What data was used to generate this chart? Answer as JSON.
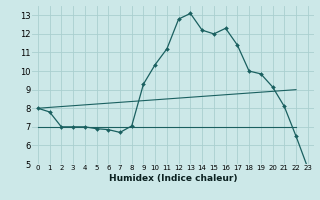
{
  "xlabel": "Humidex (Indice chaleur)",
  "bg_color": "#cce8e8",
  "grid_color": "#aacfcf",
  "line_color": "#1a6060",
  "xlim": [
    -0.5,
    23.5
  ],
  "ylim": [
    5,
    13.5
  ],
  "yticks": [
    5,
    6,
    7,
    8,
    9,
    10,
    11,
    12,
    13
  ],
  "xticks": [
    0,
    1,
    2,
    3,
    4,
    5,
    6,
    7,
    8,
    9,
    10,
    11,
    12,
    13,
    14,
    15,
    16,
    17,
    18,
    19,
    20,
    21,
    22,
    23
  ],
  "hours": [
    0,
    1,
    2,
    3,
    4,
    5,
    6,
    7,
    8,
    9,
    10,
    11,
    12,
    13,
    14,
    15,
    16,
    17,
    18,
    19,
    20,
    21,
    22,
    23
  ],
  "values": [
    8.0,
    7.8,
    7.0,
    7.0,
    7.0,
    6.9,
    6.85,
    6.7,
    7.05,
    9.3,
    10.35,
    11.2,
    12.8,
    13.1,
    12.2,
    12.0,
    12.3,
    11.4,
    10.0,
    9.85,
    9.15,
    8.1,
    6.5,
    4.8
  ],
  "flat_line_x": [
    0,
    22
  ],
  "flat_line_y": [
    7.0,
    7.0
  ],
  "diag_line_x": [
    0,
    22
  ],
  "diag_line_y": [
    8.0,
    9.0
  ]
}
